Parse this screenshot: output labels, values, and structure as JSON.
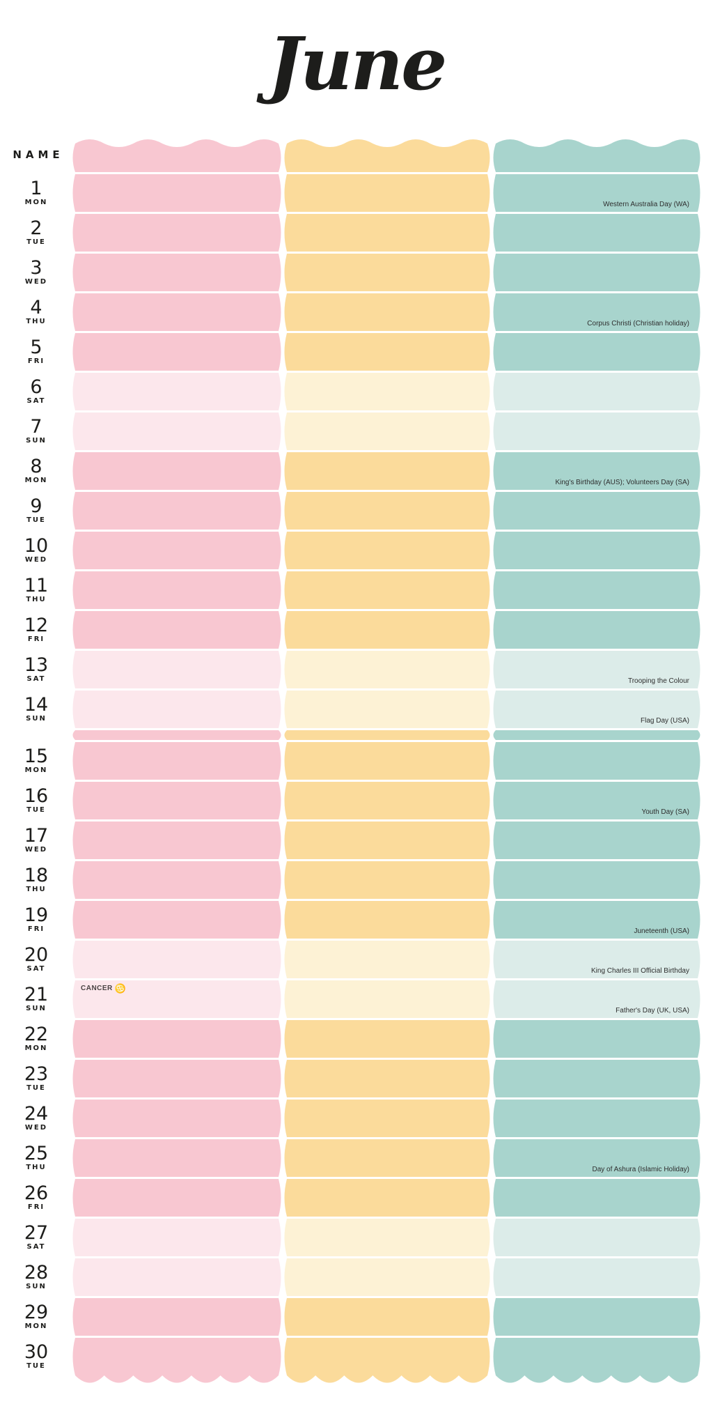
{
  "title": "June",
  "header": {
    "name_label": "NAME"
  },
  "columns": [
    {
      "id": "pink",
      "color": "#f8c7d1",
      "weekend_color": "#fce7ec"
    },
    {
      "id": "yellow",
      "color": "#fbdb9b",
      "weekend_color": "#fdf2d5"
    },
    {
      "id": "teal",
      "color": "#a8d4cd",
      "weekend_color": "#dcece9"
    }
  ],
  "mid_month_break_after_day": 14,
  "zodiac": {
    "day": 21,
    "label": "CANCER",
    "symbol": "♋",
    "label_color": "#4a4343",
    "symbol_color": "#ef9aa9"
  },
  "days": [
    {
      "day": 1,
      "weekday": "MON",
      "holiday": "Western Australia Day (WA)"
    },
    {
      "day": 2,
      "weekday": "TUE"
    },
    {
      "day": 3,
      "weekday": "WED"
    },
    {
      "day": 4,
      "weekday": "THU",
      "holiday": "Corpus Christi (Christian holiday)"
    },
    {
      "day": 5,
      "weekday": "FRI"
    },
    {
      "day": 6,
      "weekday": "SAT"
    },
    {
      "day": 7,
      "weekday": "SUN"
    },
    {
      "day": 8,
      "weekday": "MON",
      "holiday": "King's Birthday (AUS); Volunteers Day (SA)"
    },
    {
      "day": 9,
      "weekday": "TUE"
    },
    {
      "day": 10,
      "weekday": "WED"
    },
    {
      "day": 11,
      "weekday": "THU"
    },
    {
      "day": 12,
      "weekday": "FRI"
    },
    {
      "day": 13,
      "weekday": "SAT",
      "holiday": "Trooping the Colour"
    },
    {
      "day": 14,
      "weekday": "SUN",
      "holiday": "Flag Day (USA)"
    },
    {
      "day": 15,
      "weekday": "MON"
    },
    {
      "day": 16,
      "weekday": "TUE",
      "holiday": "Youth Day (SA)"
    },
    {
      "day": 17,
      "weekday": "WED"
    },
    {
      "day": 18,
      "weekday": "THU"
    },
    {
      "day": 19,
      "weekday": "FRI",
      "holiday": "Juneteenth (USA)"
    },
    {
      "day": 20,
      "weekday": "SAT",
      "holiday": "King Charles III Official Birthday"
    },
    {
      "day": 21,
      "weekday": "SUN",
      "holiday": "Father's Day (UK, USA)"
    },
    {
      "day": 22,
      "weekday": "MON"
    },
    {
      "day": 23,
      "weekday": "TUE"
    },
    {
      "day": 24,
      "weekday": "WED"
    },
    {
      "day": 25,
      "weekday": "THU",
      "holiday": "Day of Ashura (Islamic Holiday)"
    },
    {
      "day": 26,
      "weekday": "FRI"
    },
    {
      "day": 27,
      "weekday": "SAT"
    },
    {
      "day": 28,
      "weekday": "SUN"
    },
    {
      "day": 29,
      "weekday": "MON"
    },
    {
      "day": 30,
      "weekday": "TUE"
    }
  ]
}
